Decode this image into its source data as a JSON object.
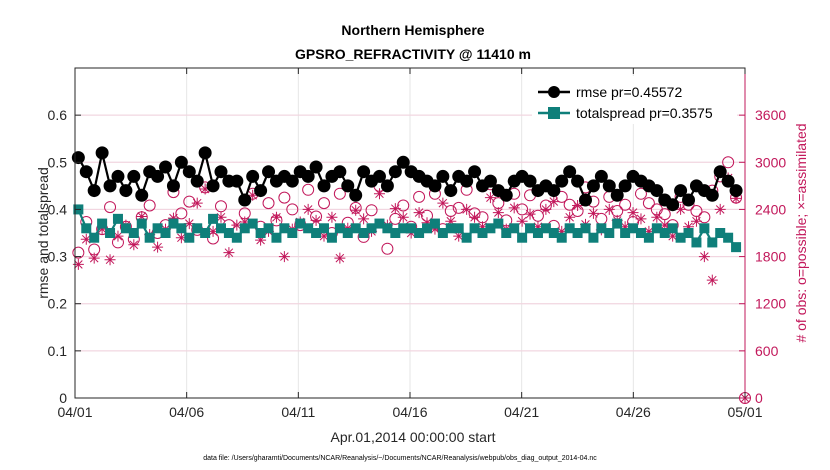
{
  "chart_data": {
    "type": "line",
    "title": "Northern Hemisphere",
    "subtitle": "GPSRO_REFRACTIVITY @ 11410 m",
    "xlabel": "Apr.01,2014 00:00:00 start",
    "ylabel": "rmse and totalspread",
    "ylabel_right": "# of obs: o=possible; ×=assimilated",
    "footnote": "data file: /Users/gharamti/Documents/NCAR/Reanalysis/~/Documents/NCAR/Reanalysis/webpub/obs_diag_output_2014-04.nc",
    "x_range_days": [
      0,
      30
    ],
    "x_ticks": [
      {
        "day": 0,
        "label": "04/01"
      },
      {
        "day": 5,
        "label": "04/06"
      },
      {
        "day": 10,
        "label": "04/11"
      },
      {
        "day": 15,
        "label": "04/16"
      },
      {
        "day": 20,
        "label": "04/21"
      },
      {
        "day": 25,
        "label": "04/26"
      },
      {
        "day": 30,
        "label": "05/01"
      }
    ],
    "ylim": [
      0,
      0.7
    ],
    "y_ticks": [
      "0",
      "0.1",
      "0.2",
      "0.3",
      "0.4",
      "0.5",
      "0.6"
    ],
    "y_tick_values": [
      0,
      0.1,
      0.2,
      0.3,
      0.4,
      0.5,
      0.6
    ],
    "ylim_right": [
      0,
      4200
    ],
    "y_ticks_right": [
      "0",
      "600",
      "1200",
      "1800",
      "2400",
      "3000",
      "3600"
    ],
    "y_tick_values_right": [
      0,
      600,
      1200,
      1800,
      2400,
      3000,
      3600
    ],
    "grid": true,
    "legend_position": "top-right",
    "series": [
      {
        "name": "rmse",
        "legend": "rmse pr=0.45572",
        "color": "#000000",
        "marker": "circle",
        "values": [
          0.51,
          0.48,
          0.44,
          0.52,
          0.45,
          0.47,
          0.44,
          0.47,
          0.43,
          0.48,
          0.47,
          0.49,
          0.45,
          0.5,
          0.48,
          0.46,
          0.52,
          0.45,
          0.48,
          0.46,
          0.46,
          0.42,
          0.47,
          0.44,
          0.48,
          0.46,
          0.47,
          0.46,
          0.48,
          0.47,
          0.49,
          0.45,
          0.47,
          0.48,
          0.45,
          0.43,
          0.48,
          0.46,
          0.47,
          0.45,
          0.48,
          0.5,
          0.48,
          0.47,
          0.46,
          0.45,
          0.47,
          0.44,
          0.47,
          0.46,
          0.48,
          0.45,
          0.46,
          0.44,
          0.43,
          0.46,
          0.47,
          0.46,
          0.44,
          0.45,
          0.44,
          0.46,
          0.48,
          0.46,
          0.42,
          0.45,
          0.47,
          0.45,
          0.43,
          0.45,
          0.47,
          0.46,
          0.45,
          0.44,
          0.42,
          0.41,
          0.44,
          0.42,
          0.45,
          0.44,
          0.43,
          0.48,
          0.46,
          0.44
        ]
      },
      {
        "name": "totalspread",
        "legend": "totalspread pr=0.3575",
        "color": "#0f7f7a",
        "marker": "square",
        "values": [
          0.4,
          0.36,
          0.34,
          0.37,
          0.35,
          0.38,
          0.36,
          0.35,
          0.37,
          0.34,
          0.36,
          0.35,
          0.37,
          0.36,
          0.34,
          0.36,
          0.35,
          0.38,
          0.36,
          0.35,
          0.34,
          0.36,
          0.37,
          0.35,
          0.36,
          0.34,
          0.36,
          0.35,
          0.37,
          0.36,
          0.35,
          0.36,
          0.34,
          0.36,
          0.35,
          0.36,
          0.35,
          0.36,
          0.37,
          0.36,
          0.35,
          0.36,
          0.36,
          0.35,
          0.36,
          0.37,
          0.35,
          0.36,
          0.36,
          0.34,
          0.36,
          0.35,
          0.36,
          0.37,
          0.35,
          0.36,
          0.34,
          0.36,
          0.35,
          0.36,
          0.35,
          0.34,
          0.36,
          0.35,
          0.36,
          0.34,
          0.36,
          0.35,
          0.37,
          0.35,
          0.36,
          0.35,
          0.34,
          0.36,
          0.35,
          0.36,
          0.34,
          0.35,
          0.33,
          0.36,
          0.33,
          0.35,
          0.34,
          0.32
        ]
      },
      {
        "name": "possible",
        "axis": "right",
        "color": "#c2185b",
        "marker": "open-circle",
        "values": [
          1850,
          2240,
          1890,
          2150,
          2430,
          1980,
          2180,
          2020,
          2300,
          2450,
          2100,
          2200,
          2620,
          2350,
          2500,
          2140,
          2680,
          2030,
          2440,
          2200,
          2760,
          2350,
          2600,
          2180,
          2480,
          2260,
          2550,
          2400,
          2200,
          2650,
          2310,
          2480,
          2100,
          2600,
          2230,
          2420,
          2050,
          2390,
          2700,
          1900,
          2280,
          2450,
          2180,
          2560,
          2320,
          2600,
          2150,
          2380,
          2420,
          2650,
          2350,
          2300,
          2720,
          2480,
          2260,
          2600,
          2400,
          2580,
          2320,
          2450,
          2190,
          2560,
          2460,
          2380,
          2680,
          2500,
          2280,
          2560,
          2380,
          2460,
          2240,
          2600,
          2480,
          2400,
          2340,
          2200,
          2560,
          2460,
          2380,
          2300,
          2640,
          2820,
          3000,
          2550
        ]
      },
      {
        "name": "assimilated",
        "axis": "right",
        "color": "#c2185b",
        "marker": "asterisk",
        "values": [
          1700,
          2020,
          1780,
          2150,
          1760,
          2060,
          2200,
          1950,
          2310,
          2080,
          1920,
          2150,
          2290,
          2040,
          2220,
          2480,
          2660,
          2120,
          2300,
          1850,
          2200,
          2240,
          2580,
          2010,
          2120,
          2300,
          1800,
          2150,
          2240,
          2400,
          2260,
          2060,
          2300,
          1780,
          2160,
          2390,
          2280,
          2120,
          2600,
          2200,
          2410,
          2300,
          2100,
          2360,
          2230,
          2150,
          2480,
          2250,
          2060,
          2400,
          2300,
          2180,
          2550,
          2360,
          2150,
          2420,
          2250,
          2340,
          2180,
          2400,
          2500,
          2120,
          2300,
          2450,
          2210,
          2350,
          2140,
          2400,
          2260,
          2180,
          2360,
          2280,
          2120,
          2300,
          2200,
          2060,
          2400,
          2180,
          2250,
          1800,
          1500,
          2400,
          2800,
          2540
        ]
      }
    ],
    "extra_points": [
      {
        "series": "possible",
        "day": 30,
        "value": 0
      },
      {
        "series": "assimilated",
        "day": 30,
        "value": 0
      }
    ]
  }
}
